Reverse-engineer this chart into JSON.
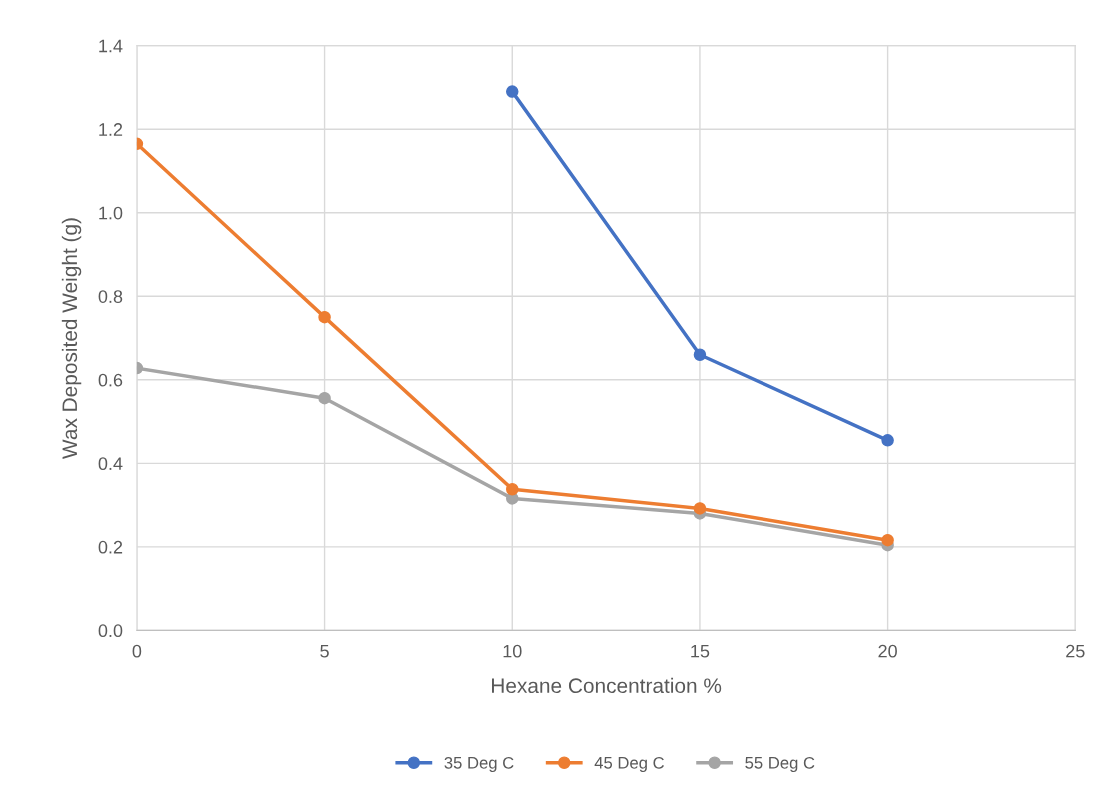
{
  "chart_data": {
    "type": "line",
    "xlabel": "Hexane Concentration %",
    "ylabel": "Wax Deposited Weight (g)",
    "x": [
      0,
      5,
      10,
      15,
      20
    ],
    "series": [
      {
        "name": "35 Deg C",
        "color": "#4472c4",
        "values": [
          null,
          null,
          1.29,
          0.66,
          0.455
        ]
      },
      {
        "name": "45 Deg C",
        "color": "#ed7d31",
        "values": [
          1.165,
          0.75,
          0.338,
          0.292,
          0.216
        ]
      },
      {
        "name": "55 Deg C",
        "color": "#a5a5a5",
        "values": [
          0.628,
          0.556,
          0.316,
          0.28,
          0.204
        ]
      }
    ],
    "xlim": [
      0,
      25
    ],
    "xticks": [
      0,
      5,
      10,
      15,
      20,
      25
    ],
    "ylim": [
      0,
      1.4
    ],
    "yticks": [
      {
        "value": 0,
        "label": "0.0"
      },
      {
        "value": 0.2,
        "label": "0.2"
      },
      {
        "value": 0.4,
        "label": "0.4"
      },
      {
        "value": 0.6,
        "label": "0.6"
      },
      {
        "value": 0.8,
        "label": "0.8"
      },
      {
        "value": 1.0,
        "label": "1.0"
      },
      {
        "value": 1.2,
        "label": "1.2"
      },
      {
        "value": 1.4,
        "label": "1.4"
      }
    ],
    "grid": true,
    "legend": "bottom",
    "marker": "circle",
    "line_style": "solid"
  }
}
